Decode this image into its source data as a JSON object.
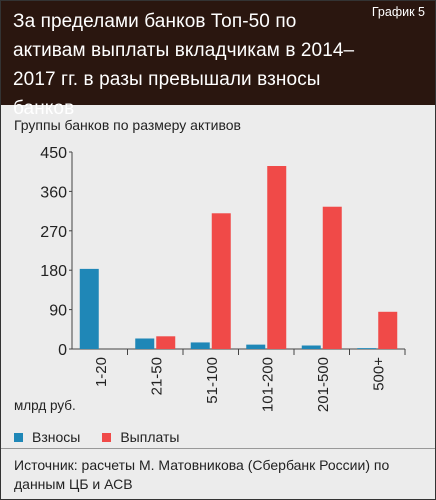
{
  "header": {
    "title": "За пределами банков Топ-50 по активам выплаты вкладчикам в 2014–2017 гг. в разы превышали взносы банков",
    "graph_label": "График 5"
  },
  "source": "Источник: расчеты М. Матовникова (Сбербанк России) по данным ЦБ и АСВ",
  "colors": {
    "header_bg": "#2a160f",
    "contributions": "#1f87b7",
    "payouts": "#f04a48",
    "panel_bg": "#ececec"
  },
  "chart_data": {
    "type": "bar",
    "title": "",
    "subtitle": "Группы банков по размеру активов",
    "xlabel": "",
    "ylabel": "млрд руб.",
    "categories": [
      "1-20",
      "21-50",
      "51-100",
      "101-200",
      "201-500",
      "500+"
    ],
    "series": [
      {
        "name": "Взносы",
        "color": "#1f87b7",
        "values": [
          183,
          24,
          15,
          10,
          8,
          2
        ]
      },
      {
        "name": "Выплаты",
        "color": "#f04a48",
        "values": [
          0,
          29,
          310,
          418,
          325,
          85
        ]
      }
    ],
    "ylim": [
      0,
      450
    ],
    "yticks": [
      0,
      90,
      180,
      270,
      360,
      450
    ],
    "grid": false,
    "legend": "bottom-left"
  }
}
